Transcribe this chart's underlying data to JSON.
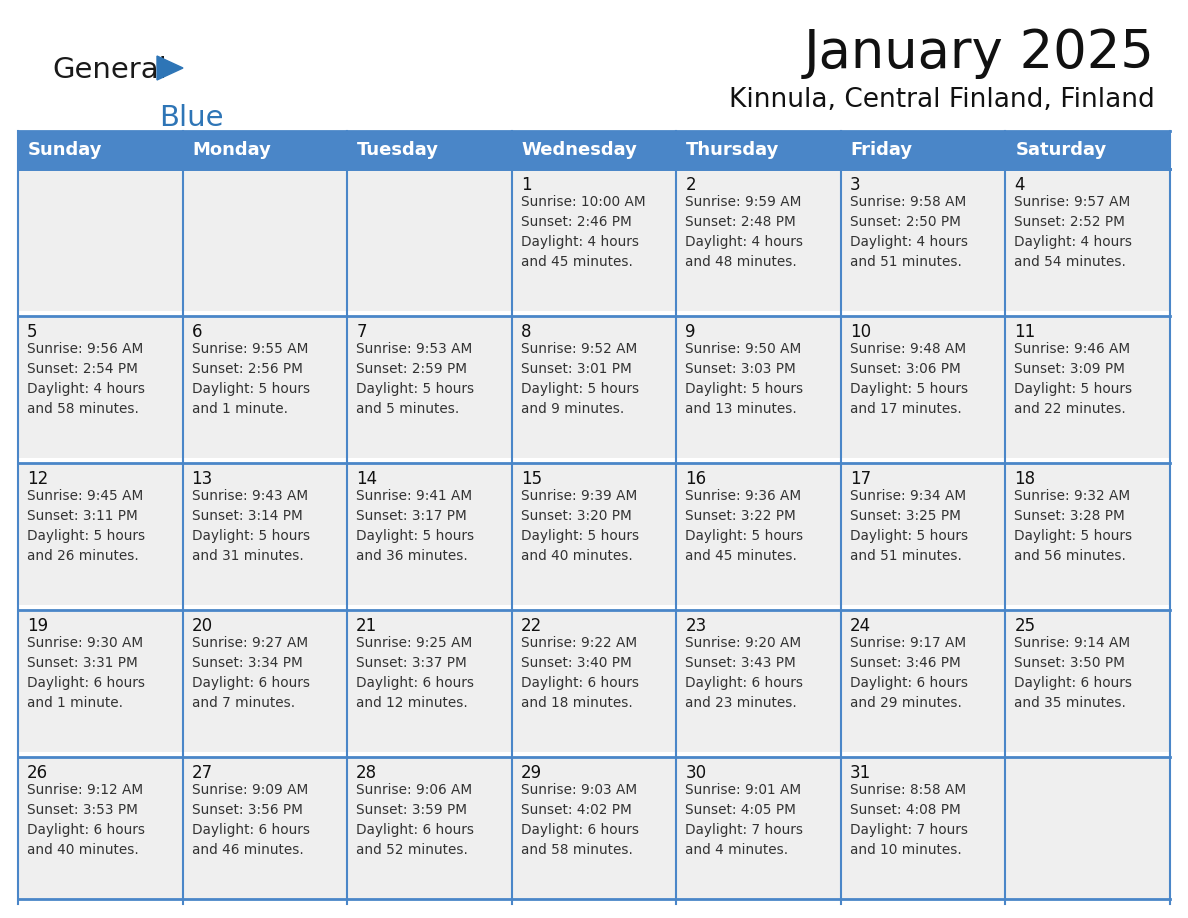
{
  "title": "January 2025",
  "subtitle": "Kinnula, Central Finland, Finland",
  "header_color": "#4A86C8",
  "header_text_color": "#FFFFFF",
  "cell_bg_color": "#EFEFEF",
  "border_color": "#4A86C8",
  "row_sep_color": "#4A86C8",
  "text_color": "#333333",
  "day_num_color": "#111111",
  "days_of_week": [
    "Sunday",
    "Monday",
    "Tuesday",
    "Wednesday",
    "Thursday",
    "Friday",
    "Saturday"
  ],
  "calendar_data": [
    [
      {
        "day": "",
        "info": ""
      },
      {
        "day": "",
        "info": ""
      },
      {
        "day": "",
        "info": ""
      },
      {
        "day": "1",
        "info": "Sunrise: 10:00 AM\nSunset: 2:46 PM\nDaylight: 4 hours\nand 45 minutes."
      },
      {
        "day": "2",
        "info": "Sunrise: 9:59 AM\nSunset: 2:48 PM\nDaylight: 4 hours\nand 48 minutes."
      },
      {
        "day": "3",
        "info": "Sunrise: 9:58 AM\nSunset: 2:50 PM\nDaylight: 4 hours\nand 51 minutes."
      },
      {
        "day": "4",
        "info": "Sunrise: 9:57 AM\nSunset: 2:52 PM\nDaylight: 4 hours\nand 54 minutes."
      }
    ],
    [
      {
        "day": "5",
        "info": "Sunrise: 9:56 AM\nSunset: 2:54 PM\nDaylight: 4 hours\nand 58 minutes."
      },
      {
        "day": "6",
        "info": "Sunrise: 9:55 AM\nSunset: 2:56 PM\nDaylight: 5 hours\nand 1 minute."
      },
      {
        "day": "7",
        "info": "Sunrise: 9:53 AM\nSunset: 2:59 PM\nDaylight: 5 hours\nand 5 minutes."
      },
      {
        "day": "8",
        "info": "Sunrise: 9:52 AM\nSunset: 3:01 PM\nDaylight: 5 hours\nand 9 minutes."
      },
      {
        "day": "9",
        "info": "Sunrise: 9:50 AM\nSunset: 3:03 PM\nDaylight: 5 hours\nand 13 minutes."
      },
      {
        "day": "10",
        "info": "Sunrise: 9:48 AM\nSunset: 3:06 PM\nDaylight: 5 hours\nand 17 minutes."
      },
      {
        "day": "11",
        "info": "Sunrise: 9:46 AM\nSunset: 3:09 PM\nDaylight: 5 hours\nand 22 minutes."
      }
    ],
    [
      {
        "day": "12",
        "info": "Sunrise: 9:45 AM\nSunset: 3:11 PM\nDaylight: 5 hours\nand 26 minutes."
      },
      {
        "day": "13",
        "info": "Sunrise: 9:43 AM\nSunset: 3:14 PM\nDaylight: 5 hours\nand 31 minutes."
      },
      {
        "day": "14",
        "info": "Sunrise: 9:41 AM\nSunset: 3:17 PM\nDaylight: 5 hours\nand 36 minutes."
      },
      {
        "day": "15",
        "info": "Sunrise: 9:39 AM\nSunset: 3:20 PM\nDaylight: 5 hours\nand 40 minutes."
      },
      {
        "day": "16",
        "info": "Sunrise: 9:36 AM\nSunset: 3:22 PM\nDaylight: 5 hours\nand 45 minutes."
      },
      {
        "day": "17",
        "info": "Sunrise: 9:34 AM\nSunset: 3:25 PM\nDaylight: 5 hours\nand 51 minutes."
      },
      {
        "day": "18",
        "info": "Sunrise: 9:32 AM\nSunset: 3:28 PM\nDaylight: 5 hours\nand 56 minutes."
      }
    ],
    [
      {
        "day": "19",
        "info": "Sunrise: 9:30 AM\nSunset: 3:31 PM\nDaylight: 6 hours\nand 1 minute."
      },
      {
        "day": "20",
        "info": "Sunrise: 9:27 AM\nSunset: 3:34 PM\nDaylight: 6 hours\nand 7 minutes."
      },
      {
        "day": "21",
        "info": "Sunrise: 9:25 AM\nSunset: 3:37 PM\nDaylight: 6 hours\nand 12 minutes."
      },
      {
        "day": "22",
        "info": "Sunrise: 9:22 AM\nSunset: 3:40 PM\nDaylight: 6 hours\nand 18 minutes."
      },
      {
        "day": "23",
        "info": "Sunrise: 9:20 AM\nSunset: 3:43 PM\nDaylight: 6 hours\nand 23 minutes."
      },
      {
        "day": "24",
        "info": "Sunrise: 9:17 AM\nSunset: 3:46 PM\nDaylight: 6 hours\nand 29 minutes."
      },
      {
        "day": "25",
        "info": "Sunrise: 9:14 AM\nSunset: 3:50 PM\nDaylight: 6 hours\nand 35 minutes."
      }
    ],
    [
      {
        "day": "26",
        "info": "Sunrise: 9:12 AM\nSunset: 3:53 PM\nDaylight: 6 hours\nand 40 minutes."
      },
      {
        "day": "27",
        "info": "Sunrise: 9:09 AM\nSunset: 3:56 PM\nDaylight: 6 hours\nand 46 minutes."
      },
      {
        "day": "28",
        "info": "Sunrise: 9:06 AM\nSunset: 3:59 PM\nDaylight: 6 hours\nand 52 minutes."
      },
      {
        "day": "29",
        "info": "Sunrise: 9:03 AM\nSunset: 4:02 PM\nDaylight: 6 hours\nand 58 minutes."
      },
      {
        "day": "30",
        "info": "Sunrise: 9:01 AM\nSunset: 4:05 PM\nDaylight: 7 hours\nand 4 minutes."
      },
      {
        "day": "31",
        "info": "Sunrise: 8:58 AM\nSunset: 4:08 PM\nDaylight: 7 hours\nand 10 minutes."
      },
      {
        "day": "",
        "info": ""
      }
    ]
  ],
  "logo_color_general": "#1a1a1a",
  "logo_color_blue": "#2E75B6",
  "logo_triangle_color": "#2E75B6"
}
